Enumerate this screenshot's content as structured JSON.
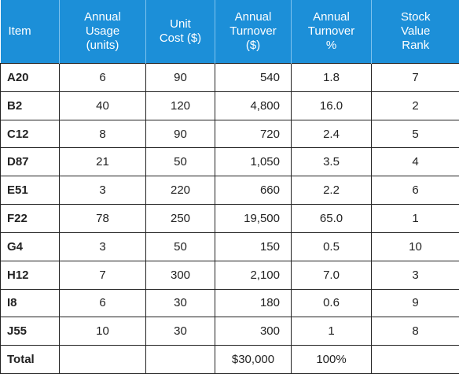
{
  "table": {
    "header": [
      [
        "Item"
      ],
      [
        "Annual",
        "Usage",
        "(units)"
      ],
      [
        "Unit",
        "Cost ($)"
      ],
      [
        "Annual",
        "Turnover",
        "($)"
      ],
      [
        "Annual",
        "Turnover",
        "%"
      ],
      [
        "Stock",
        "Value",
        "Rank"
      ]
    ],
    "rows": [
      [
        "A20",
        "6",
        "90",
        "540",
        "1.8",
        "7"
      ],
      [
        "B2",
        "40",
        "120",
        "4,800",
        "16.0",
        "2"
      ],
      [
        "C12",
        "8",
        "90",
        "720",
        "2.4",
        "5"
      ],
      [
        "D87",
        "21",
        "50",
        "1,050",
        "3.5",
        "4"
      ],
      [
        "E51",
        "3",
        "220",
        "660",
        "2.2",
        "6"
      ],
      [
        "F22",
        "78",
        "250",
        "19,500",
        "65.0",
        "1"
      ],
      [
        "G4",
        "3",
        "50",
        "150",
        "0.5",
        "10"
      ],
      [
        "H12",
        "7",
        "300",
        "2,100",
        "7.0",
        "3"
      ],
      [
        "I8",
        "6",
        "30",
        "180",
        "0.6",
        "9"
      ],
      [
        "J55",
        "10",
        "30",
        "300",
        "1",
        "8"
      ]
    ],
    "total": {
      "item": "Total",
      "annual_turnover": "$30,000",
      "percent": "100%"
    }
  }
}
